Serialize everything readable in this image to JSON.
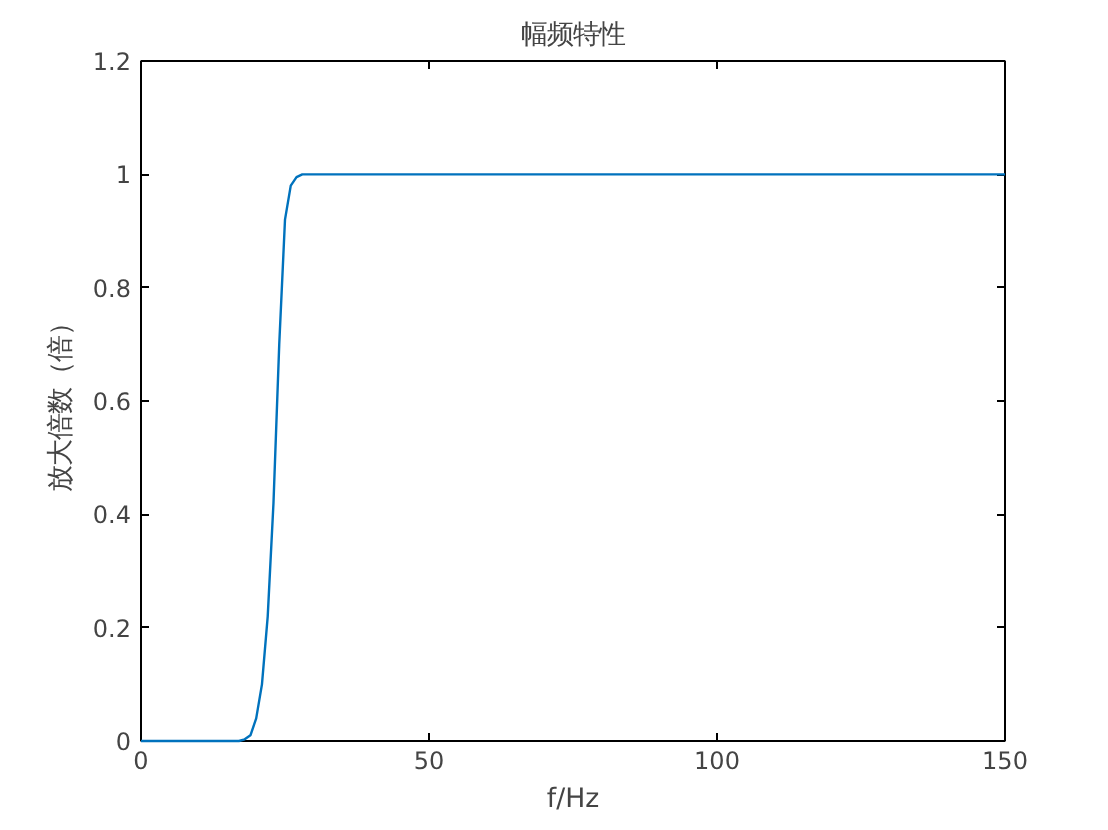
{
  "chart_data": {
    "type": "line",
    "title": "幅频特性",
    "xlabel": "f/Hz",
    "ylabel": "放大倍数（倍）",
    "x": [
      0,
      17,
      18,
      19,
      20,
      21,
      22,
      23,
      24,
      25,
      26,
      27,
      28,
      30,
      50,
      100,
      150
    ],
    "series": [
      {
        "color": "#0072bd",
        "values": [
          0,
          0,
          0.003,
          0.01,
          0.04,
          0.1,
          0.22,
          0.42,
          0.7,
          0.92,
          0.98,
          0.995,
          1,
          1,
          1,
          1,
          1
        ]
      }
    ],
    "xlim": [
      0,
      150
    ],
    "ylim": [
      0,
      1.2
    ],
    "xticks": [
      0,
      50,
      100,
      150
    ],
    "yticks": [
      0,
      0.2,
      0.4,
      0.6,
      0.8,
      1,
      1.2
    ],
    "grid": false,
    "marker": "none",
    "line_style": "solid"
  }
}
